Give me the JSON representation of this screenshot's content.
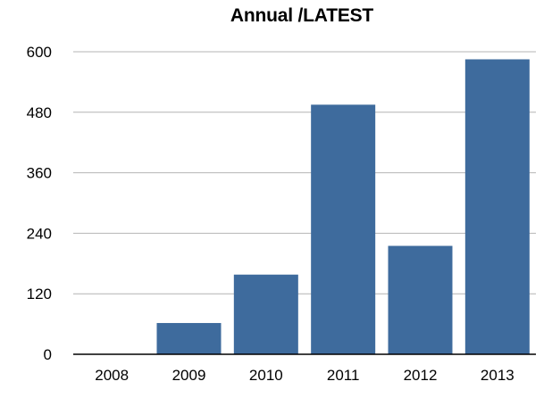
{
  "chart_data": {
    "type": "bar",
    "title": "Annual /LATEST",
    "xlabel": "",
    "ylabel": "",
    "categories": [
      "2008",
      "2009",
      "2010",
      "2011",
      "2012",
      "2013"
    ],
    "values": [
      0,
      62,
      158,
      495,
      215,
      585
    ],
    "ylim": [
      0,
      600
    ],
    "yticks": [
      "0",
      "120",
      "240",
      "360",
      "480",
      "600"
    ],
    "grid": true,
    "legend": "none",
    "bar_color": "#3e6b9d",
    "grid_color": "#b4b4b4",
    "axis_color": "#000000"
  }
}
